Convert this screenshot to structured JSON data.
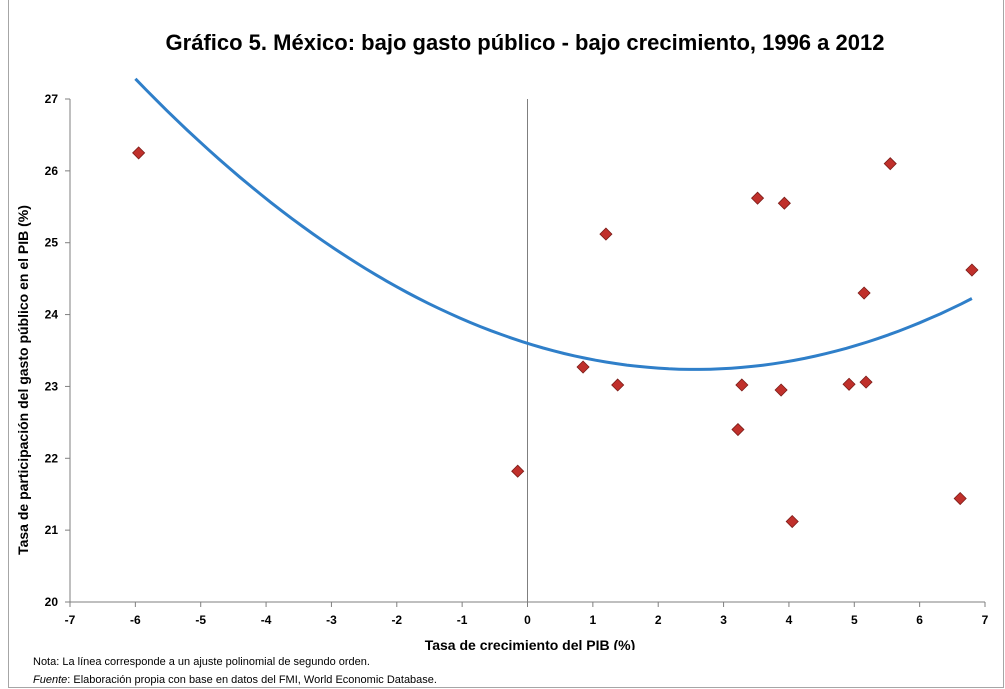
{
  "chart_data": {
    "type": "scatter",
    "title": "Gráfico 5. México: bajo gasto público - bajo crecimiento, 1996 a 2012",
    "xlabel": "Tasa de crecimiento del PIB  (%)",
    "ylabel": "Tasa de participación del gasto público en el PIB (%)",
    "xlim": [
      -7,
      7
    ],
    "ylim": [
      20,
      27
    ],
    "xticks": [
      "-7",
      "-6",
      "-5",
      "-4",
      "-3",
      "-2",
      "-1",
      "0",
      "1",
      "2",
      "3",
      "4",
      "5",
      "6",
      "7"
    ],
    "yticks": [
      "20",
      "21",
      "22",
      "23",
      "24",
      "25",
      "26",
      "27"
    ],
    "grid": false,
    "marker_color": "#c0302b",
    "trend_color": "#2f7fc9",
    "series": [
      {
        "points": [
          {
            "x": -5.95,
            "y": 26.25
          },
          {
            "x": -0.15,
            "y": 21.82
          },
          {
            "x": 0.85,
            "y": 23.27
          },
          {
            "x": 1.2,
            "y": 25.12
          },
          {
            "x": 1.38,
            "y": 23.02
          },
          {
            "x": 3.22,
            "y": 22.4
          },
          {
            "x": 3.28,
            "y": 23.02
          },
          {
            "x": 3.52,
            "y": 25.62
          },
          {
            "x": 3.88,
            "y": 22.95
          },
          {
            "x": 3.93,
            "y": 25.55
          },
          {
            "x": 4.05,
            "y": 21.12
          },
          {
            "x": 4.92,
            "y": 23.03
          },
          {
            "x": 5.15,
            "y": 24.3
          },
          {
            "x": 5.18,
            "y": 23.06
          },
          {
            "x": 5.55,
            "y": 26.1
          },
          {
            "x": 6.62,
            "y": 21.44
          },
          {
            "x": 6.8,
            "y": 24.62
          }
        ]
      }
    ],
    "trendline": {
      "type": "polynomial-2",
      "coefficients": {
        "a": 0.0551,
        "b": -0.283,
        "c": 23.6
      },
      "x_range": [
        -6,
        6.8
      ]
    }
  },
  "notes": {
    "line1": "Nota: La línea corresponde a un ajuste polinomial de segundo orden.",
    "line2_label": "Fuente",
    "line2_text": ": Elaboración propia con base en datos del FMI, World Economic Database."
  }
}
